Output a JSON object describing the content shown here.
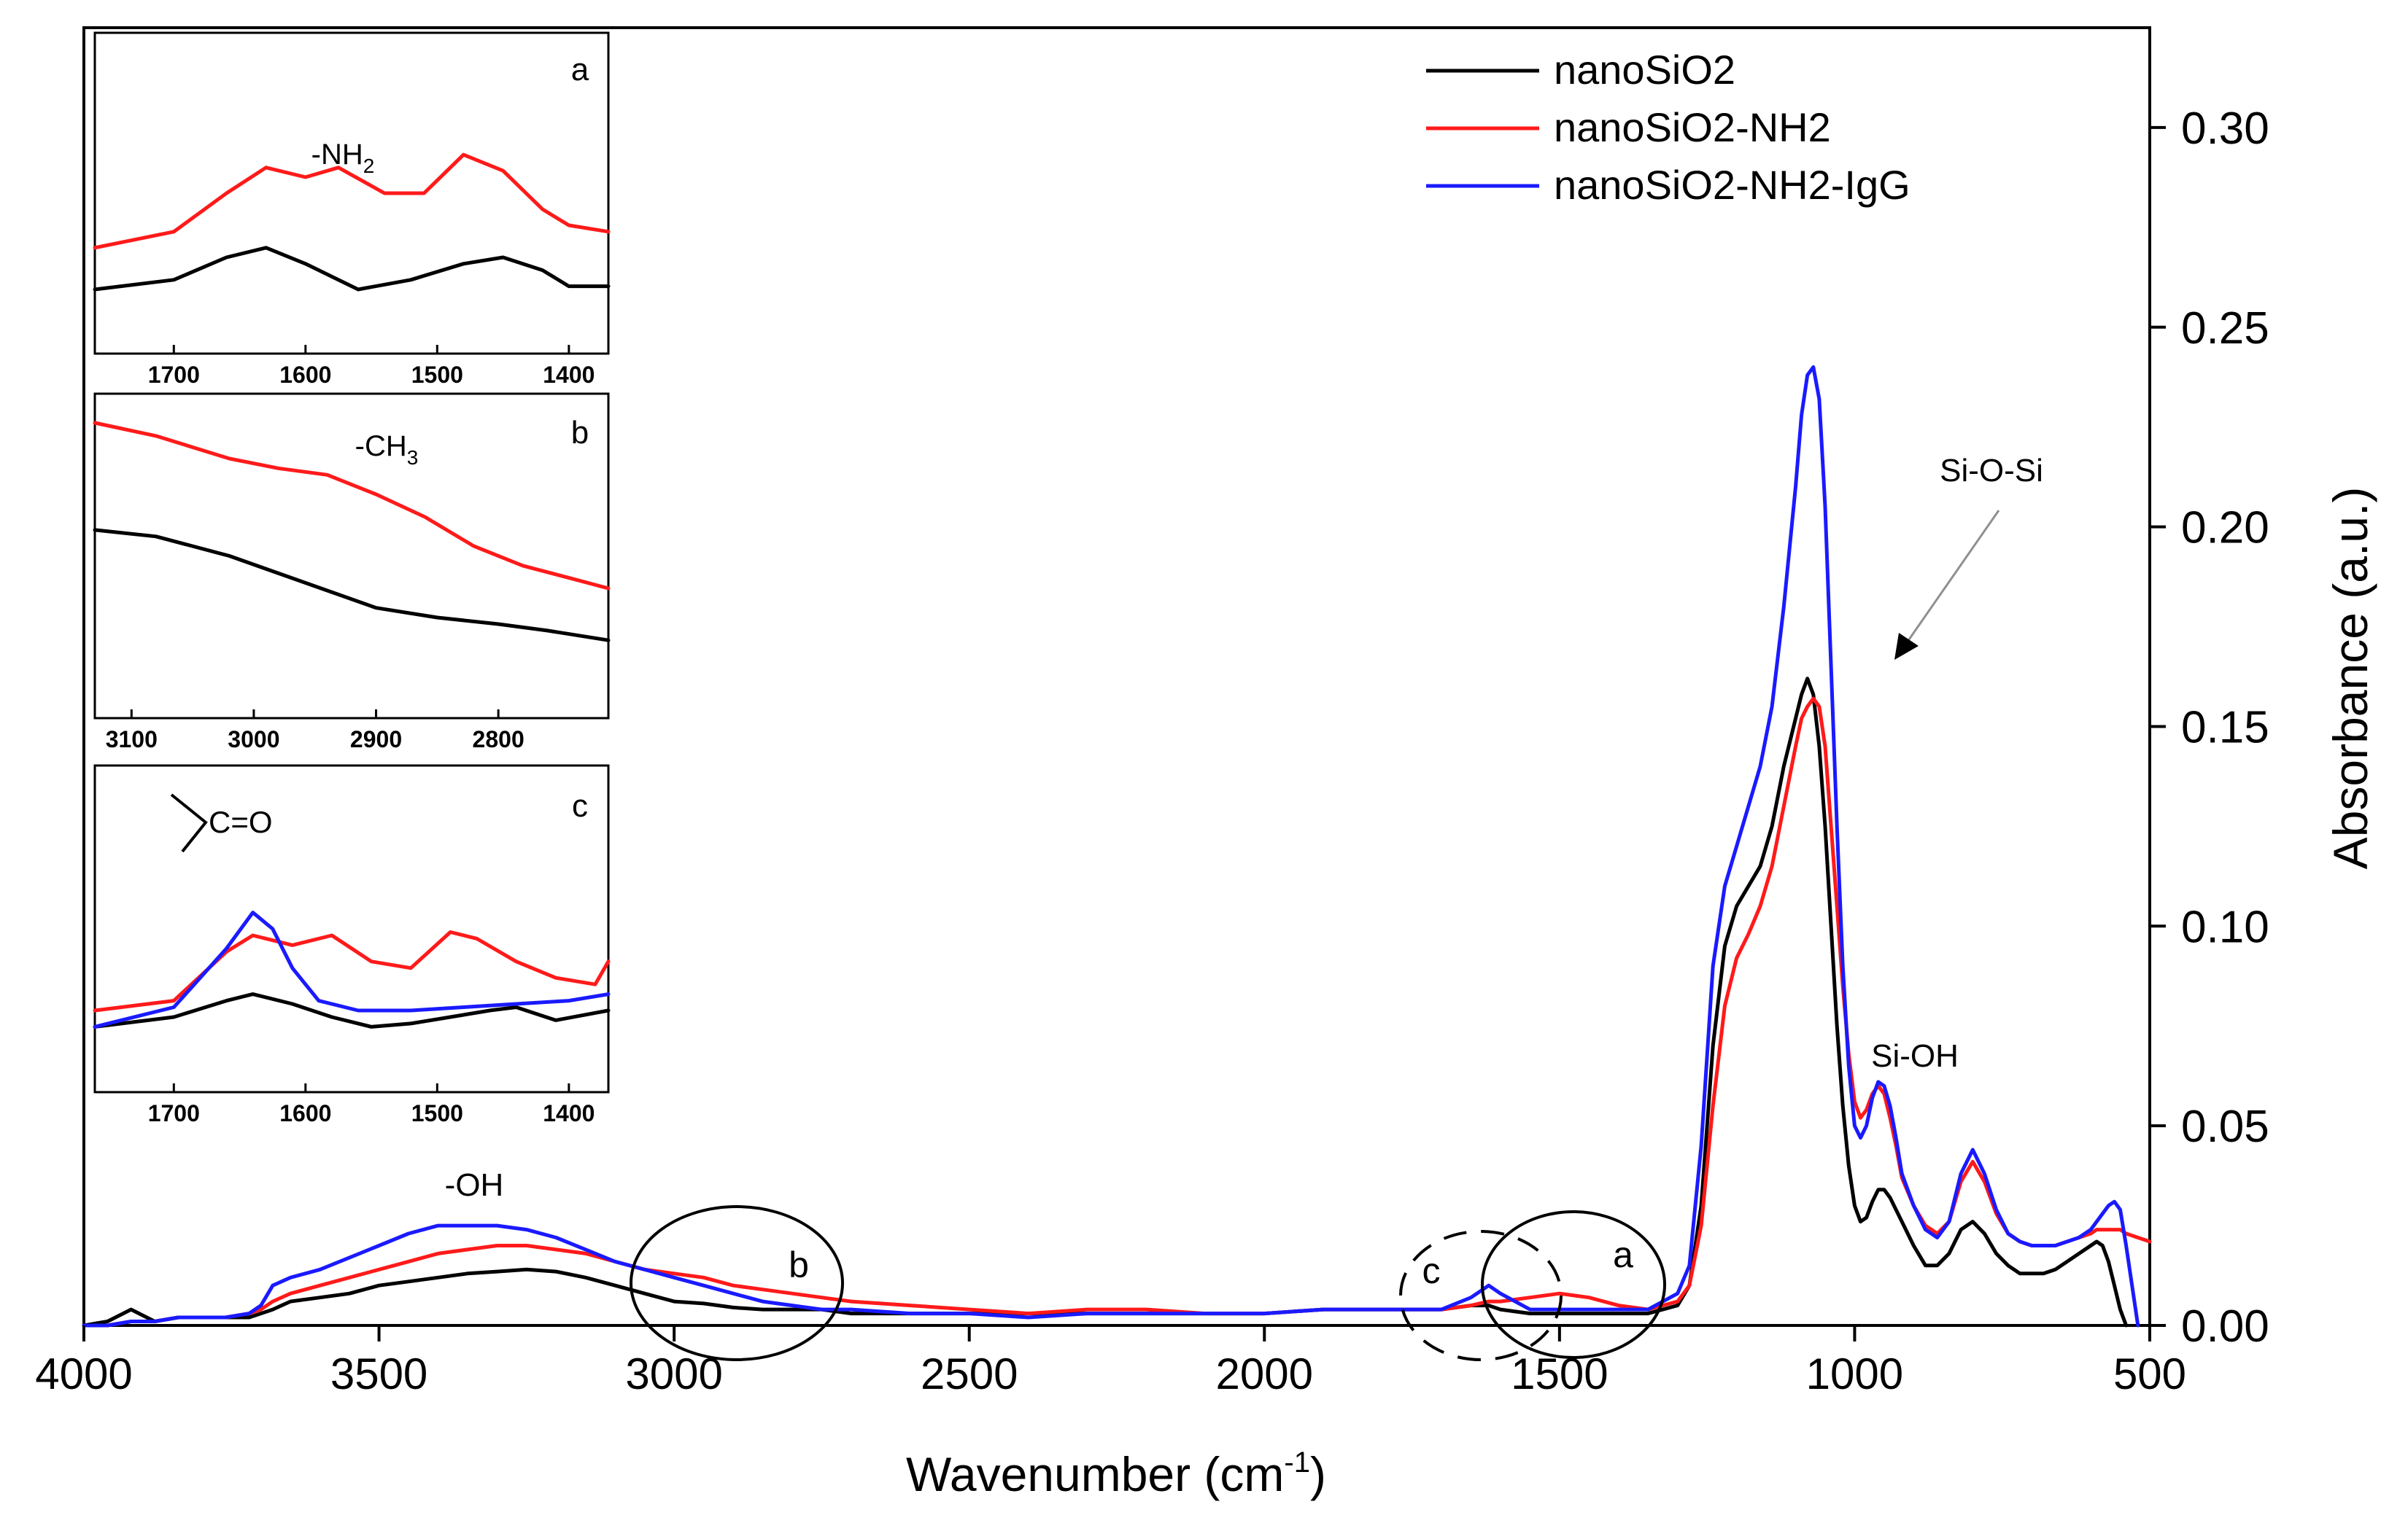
{
  "colors": {
    "nanoSiO2": "#000000",
    "nanoSiO2-NH2": "#ff1a1a",
    "nanoSiO2-NH2-IgG": "#1a1aff",
    "axis": "#000000",
    "guide": "#808080"
  },
  "chart_data": [
    {
      "id": "main",
      "type": "line",
      "xlabel": "Wavenumber (cm",
      "xlabel_superscript": "-1",
      "xlabel_close": ")",
      "ylabel": "Absorbance (a.u.)",
      "xlim": [
        4000,
        500
      ],
      "ylim": [
        0,
        0.325
      ],
      "xticks": [
        4000,
        3500,
        3000,
        2500,
        2000,
        1500,
        1000,
        500
      ],
      "xtick_labels": [
        "4000",
        "3500",
        "3000",
        "2500",
        "2000",
        "1500",
        "1000",
        "500"
      ],
      "yticks": [
        0,
        0.05,
        0.1,
        0.15,
        0.2,
        0.25,
        0.3
      ],
      "ytick_labels": [
        "0.00",
        "0.05",
        "0.10",
        "0.15",
        "0.20",
        "0.25",
        "0.30"
      ],
      "y_axis_side": "right",
      "legend": {
        "position": "top-right",
        "entries": [
          "nanoSiO2",
          "nanoSiO2-NH2",
          "nanoSiO2-NH2-IgG"
        ]
      },
      "annotations": {
        "oh": "-OH",
        "si_o_si": "Si-O-Si",
        "si_oh": "Si-OH",
        "a": "a",
        "b": "b",
        "c": "c"
      },
      "series": [
        {
          "name": "nanoSiO2",
          "x": [
            4000,
            3960,
            3920,
            3880,
            3840,
            3800,
            3760,
            3720,
            3700,
            3680,
            3650,
            3600,
            3550,
            3500,
            3450,
            3400,
            3350,
            3300,
            3250,
            3200,
            3150,
            3100,
            3050,
            3000,
            2950,
            2900,
            2850,
            2800,
            2750,
            2700,
            2600,
            2500,
            2400,
            2300,
            2200,
            2100,
            2000,
            1900,
            1800,
            1700,
            1650,
            1620,
            1600,
            1550,
            1500,
            1450,
            1400,
            1350,
            1300,
            1280,
            1260,
            1240,
            1220,
            1200,
            1180,
            1160,
            1140,
            1120,
            1100,
            1090,
            1080,
            1070,
            1060,
            1050,
            1040,
            1030,
            1020,
            1010,
            1000,
            990,
            980,
            970,
            960,
            950,
            940,
            930,
            920,
            900,
            880,
            860,
            840,
            820,
            800,
            780,
            760,
            740,
            720,
            700,
            680,
            660,
            640,
            620,
            600,
            590,
            580,
            570,
            560,
            550,
            540
          ],
          "values": [
            0.0,
            0.001,
            0.004,
            0.001,
            0.002,
            0.002,
            0.002,
            0.002,
            0.003,
            0.004,
            0.006,
            0.007,
            0.008,
            0.01,
            0.011,
            0.012,
            0.013,
            0.0135,
            0.014,
            0.0135,
            0.012,
            0.01,
            0.008,
            0.006,
            0.0055,
            0.0045,
            0.004,
            0.004,
            0.004,
            0.003,
            0.003,
            0.003,
            0.003,
            0.003,
            0.003,
            0.003,
            0.003,
            0.004,
            0.004,
            0.004,
            0.005,
            0.005,
            0.004,
            0.003,
            0.003,
            0.003,
            0.003,
            0.003,
            0.005,
            0.01,
            0.03,
            0.07,
            0.095,
            0.105,
            0.11,
            0.115,
            0.125,
            0.14,
            0.152,
            0.158,
            0.162,
            0.158,
            0.145,
            0.125,
            0.1,
            0.075,
            0.055,
            0.04,
            0.03,
            0.026,
            0.027,
            0.031,
            0.034,
            0.034,
            0.032,
            0.029,
            0.026,
            0.02,
            0.015,
            0.015,
            0.018,
            0.024,
            0.026,
            0.023,
            0.018,
            0.015,
            0.013,
            0.013,
            0.013,
            0.014,
            0.016,
            0.018,
            0.02,
            0.021,
            0.02,
            0.016,
            0.01,
            0.004,
            0.0
          ]
        },
        {
          "name": "nanoSiO2-NH2",
          "x": [
            4000,
            3960,
            3920,
            3880,
            3840,
            3800,
            3760,
            3720,
            3700,
            3680,
            3650,
            3600,
            3550,
            3500,
            3450,
            3400,
            3350,
            3300,
            3250,
            3200,
            3150,
            3100,
            3050,
            3000,
            2950,
            2900,
            2850,
            2800,
            2750,
            2700,
            2600,
            2500,
            2400,
            2300,
            2200,
            2100,
            2000,
            1900,
            1800,
            1700,
            1650,
            1620,
            1600,
            1550,
            1500,
            1450,
            1400,
            1350,
            1300,
            1280,
            1260,
            1240,
            1220,
            1200,
            1180,
            1160,
            1140,
            1120,
            1100,
            1090,
            1080,
            1070,
            1060,
            1050,
            1040,
            1030,
            1020,
            1010,
            1000,
            990,
            980,
            970,
            960,
            950,
            940,
            930,
            920,
            900,
            880,
            860,
            840,
            820,
            800,
            780,
            760,
            740,
            720,
            700,
            680,
            660,
            640,
            620,
            600,
            590,
            580,
            570,
            560,
            550,
            540,
            520,
            500
          ],
          "values": [
            0.0,
            0.0,
            0.001,
            0.001,
            0.002,
            0.002,
            0.002,
            0.003,
            0.004,
            0.006,
            0.008,
            0.01,
            0.012,
            0.014,
            0.016,
            0.018,
            0.019,
            0.02,
            0.02,
            0.019,
            0.018,
            0.016,
            0.014,
            0.013,
            0.012,
            0.01,
            0.009,
            0.008,
            0.007,
            0.006,
            0.005,
            0.004,
            0.003,
            0.004,
            0.004,
            0.003,
            0.003,
            0.004,
            0.004,
            0.004,
            0.005,
            0.006,
            0.006,
            0.007,
            0.008,
            0.007,
            0.005,
            0.004,
            0.006,
            0.01,
            0.025,
            0.055,
            0.08,
            0.092,
            0.098,
            0.105,
            0.115,
            0.13,
            0.145,
            0.152,
            0.155,
            0.157,
            0.155,
            0.145,
            0.125,
            0.105,
            0.085,
            0.068,
            0.056,
            0.052,
            0.054,
            0.058,
            0.06,
            0.058,
            0.052,
            0.045,
            0.037,
            0.03,
            0.025,
            0.023,
            0.026,
            0.036,
            0.041,
            0.036,
            0.028,
            0.023,
            0.021,
            0.02,
            0.02,
            0.02,
            0.021,
            0.022,
            0.023,
            0.024,
            0.024,
            0.024,
            0.024,
            0.024,
            0.023,
            0.022,
            0.021
          ]
        },
        {
          "name": "nanoSiO2-NH2-IgG",
          "x": [
            4000,
            3960,
            3920,
            3880,
            3840,
            3800,
            3760,
            3720,
            3700,
            3680,
            3650,
            3600,
            3550,
            3500,
            3450,
            3400,
            3350,
            3300,
            3250,
            3200,
            3150,
            3100,
            3050,
            3000,
            2950,
            2900,
            2850,
            2800,
            2750,
            2700,
            2600,
            2500,
            2400,
            2300,
            2200,
            2100,
            2000,
            1900,
            1800,
            1700,
            1650,
            1620,
            1600,
            1550,
            1500,
            1450,
            1400,
            1350,
            1300,
            1280,
            1260,
            1240,
            1220,
            1200,
            1180,
            1160,
            1140,
            1120,
            1100,
            1090,
            1080,
            1070,
            1060,
            1050,
            1040,
            1030,
            1020,
            1010,
            1000,
            990,
            980,
            970,
            960,
            950,
            940,
            930,
            920,
            900,
            880,
            860,
            840,
            820,
            800,
            780,
            760,
            740,
            720,
            700,
            680,
            660,
            640,
            620,
            600,
            590,
            580,
            570,
            560,
            550,
            540,
            530,
            520
          ],
          "values": [
            0.0,
            0.0,
            0.001,
            0.001,
            0.002,
            0.002,
            0.002,
            0.003,
            0.005,
            0.01,
            0.012,
            0.014,
            0.017,
            0.02,
            0.023,
            0.025,
            0.025,
            0.025,
            0.024,
            0.022,
            0.019,
            0.016,
            0.014,
            0.012,
            0.01,
            0.008,
            0.006,
            0.005,
            0.004,
            0.004,
            0.003,
            0.003,
            0.002,
            0.003,
            0.003,
            0.003,
            0.003,
            0.004,
            0.004,
            0.004,
            0.007,
            0.01,
            0.008,
            0.004,
            0.004,
            0.004,
            0.004,
            0.004,
            0.008,
            0.015,
            0.045,
            0.09,
            0.11,
            0.12,
            0.13,
            0.14,
            0.155,
            0.18,
            0.21,
            0.228,
            0.238,
            0.24,
            0.232,
            0.205,
            0.165,
            0.125,
            0.09,
            0.065,
            0.05,
            0.047,
            0.05,
            0.057,
            0.061,
            0.06,
            0.055,
            0.047,
            0.038,
            0.03,
            0.024,
            0.022,
            0.026,
            0.038,
            0.044,
            0.038,
            0.029,
            0.023,
            0.021,
            0.02,
            0.02,
            0.02,
            0.021,
            0.022,
            0.024,
            0.026,
            0.028,
            0.03,
            0.031,
            0.029,
            0.02,
            0.01,
            0.0
          ]
        }
      ]
    },
    {
      "id": "inset-a",
      "type": "line",
      "label": "a",
      "annotation": "-NH",
      "annotation_sub": "2",
      "xlim": [
        1760,
        1370
      ],
      "ylim": [
        0,
        1
      ],
      "xticks": [
        1700,
        1600,
        1500,
        1400
      ],
      "xtick_labels": [
        "1700",
        "1600",
        "1500",
        "1400"
      ],
      "series": [
        {
          "name": "nanoSiO2",
          "x": [
            1760,
            1700,
            1660,
            1630,
            1600,
            1560,
            1520,
            1480,
            1450,
            1420,
            1400,
            1370
          ],
          "values": [
            0.2,
            0.23,
            0.3,
            0.33,
            0.28,
            0.2,
            0.23,
            0.28,
            0.3,
            0.26,
            0.21,
            0.21
          ]
        },
        {
          "name": "nanoSiO2-NH2",
          "x": [
            1760,
            1700,
            1660,
            1630,
            1600,
            1575,
            1540,
            1510,
            1480,
            1450,
            1420,
            1400,
            1370
          ],
          "values": [
            0.33,
            0.38,
            0.5,
            0.58,
            0.55,
            0.58,
            0.5,
            0.5,
            0.62,
            0.57,
            0.45,
            0.4,
            0.38
          ]
        }
      ]
    },
    {
      "id": "inset-b",
      "type": "line",
      "label": "b",
      "annotation": "-CH",
      "annotation_sub": "3",
      "xlim": [
        3130,
        2710
      ],
      "ylim": [
        0,
        1
      ],
      "xticks": [
        3100,
        3000,
        2900,
        2800
      ],
      "xtick_labels": [
        "3100",
        "3000",
        "2900",
        "2800"
      ],
      "series": [
        {
          "name": "nanoSiO2",
          "x": [
            3130,
            3080,
            3020,
            2960,
            2900,
            2850,
            2800,
            2760,
            2710
          ],
          "values": [
            0.58,
            0.56,
            0.5,
            0.42,
            0.34,
            0.31,
            0.29,
            0.27,
            0.24
          ]
        },
        {
          "name": "nanoSiO2-NH2",
          "x": [
            3130,
            3080,
            3020,
            2980,
            2940,
            2900,
            2860,
            2820,
            2780,
            2740,
            2710
          ],
          "values": [
            0.91,
            0.87,
            0.8,
            0.77,
            0.75,
            0.69,
            0.62,
            0.53,
            0.47,
            0.43,
            0.4
          ]
        }
      ]
    },
    {
      "id": "inset-c",
      "type": "line",
      "label": "c",
      "annotation": "C=O",
      "xlim": [
        1760,
        1370
      ],
      "ylim": [
        0,
        1
      ],
      "xticks": [
        1700,
        1600,
        1500,
        1400
      ],
      "xtick_labels": [
        "1700",
        "1600",
        "1500",
        "1400"
      ],
      "series": [
        {
          "name": "nanoSiO2",
          "x": [
            1760,
            1700,
            1660,
            1640,
            1610,
            1580,
            1550,
            1520,
            1490,
            1460,
            1440,
            1410,
            1370
          ],
          "values": [
            0.2,
            0.23,
            0.28,
            0.3,
            0.27,
            0.23,
            0.2,
            0.21,
            0.23,
            0.25,
            0.26,
            0.22,
            0.25
          ]
        },
        {
          "name": "nanoSiO2-NH2",
          "x": [
            1760,
            1700,
            1660,
            1640,
            1610,
            1580,
            1550,
            1520,
            1490,
            1470,
            1440,
            1410,
            1380,
            1370
          ],
          "values": [
            0.25,
            0.28,
            0.43,
            0.48,
            0.45,
            0.48,
            0.4,
            0.38,
            0.49,
            0.47,
            0.4,
            0.35,
            0.33,
            0.4
          ]
        },
        {
          "name": "nanoSiO2-NH2-IgG",
          "x": [
            1760,
            1700,
            1660,
            1640,
            1625,
            1610,
            1590,
            1560,
            1520,
            1480,
            1440,
            1400,
            1370
          ],
          "values": [
            0.2,
            0.26,
            0.44,
            0.55,
            0.5,
            0.38,
            0.28,
            0.25,
            0.25,
            0.26,
            0.27,
            0.28,
            0.3
          ]
        }
      ]
    }
  ]
}
